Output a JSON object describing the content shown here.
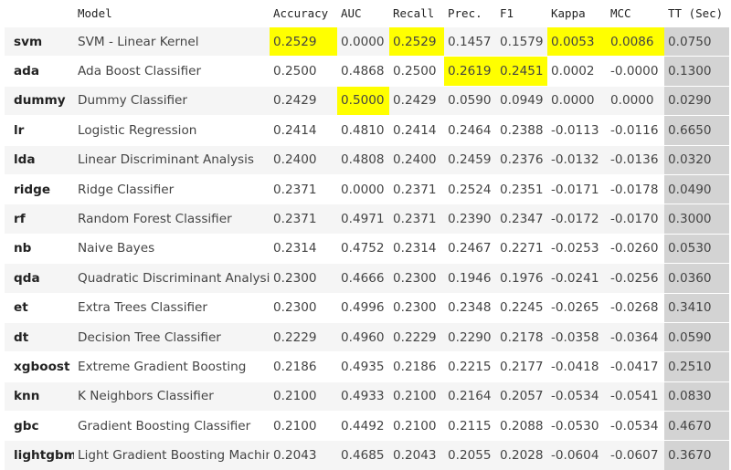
{
  "table": {
    "columns": [
      "",
      "Model",
      "Accuracy",
      "AUC",
      "Recall",
      "Prec.",
      "F1",
      "Kappa",
      "MCC",
      "TT (Sec)"
    ],
    "rows": [
      {
        "key": "svm",
        "model": "SVM - Linear Kernel",
        "accuracy": "0.2529",
        "auc": "0.0000",
        "recall": "0.2529",
        "prec": "0.1457",
        "f1": "0.1579",
        "kappa": "0.0053",
        "mcc": "0.0086",
        "tt": "0.0750",
        "highlight": [
          "accuracy",
          "recall",
          "kappa",
          "mcc"
        ]
      },
      {
        "key": "ada",
        "model": "Ada Boost Classifier",
        "accuracy": "0.2500",
        "auc": "0.4868",
        "recall": "0.2500",
        "prec": "0.2619",
        "f1": "0.2451",
        "kappa": "0.0002",
        "mcc": "-0.0000",
        "tt": "0.1300",
        "highlight": [
          "prec",
          "f1"
        ]
      },
      {
        "key": "dummy",
        "model": "Dummy Classifier",
        "accuracy": "0.2429",
        "auc": "0.5000",
        "recall": "0.2429",
        "prec": "0.0590",
        "f1": "0.0949",
        "kappa": "0.0000",
        "mcc": "0.0000",
        "tt": "0.0290",
        "highlight": [
          "auc"
        ]
      },
      {
        "key": "lr",
        "model": "Logistic Regression",
        "accuracy": "0.2414",
        "auc": "0.4810",
        "recall": "0.2414",
        "prec": "0.2464",
        "f1": "0.2388",
        "kappa": "-0.0113",
        "mcc": "-0.0116",
        "tt": "0.6650",
        "highlight": []
      },
      {
        "key": "lda",
        "model": "Linear Discriminant Analysis",
        "accuracy": "0.2400",
        "auc": "0.4808",
        "recall": "0.2400",
        "prec": "0.2459",
        "f1": "0.2376",
        "kappa": "-0.0132",
        "mcc": "-0.0136",
        "tt": "0.0320",
        "highlight": []
      },
      {
        "key": "ridge",
        "model": "Ridge Classifier",
        "accuracy": "0.2371",
        "auc": "0.0000",
        "recall": "0.2371",
        "prec": "0.2524",
        "f1": "0.2351",
        "kappa": "-0.0171",
        "mcc": "-0.0178",
        "tt": "0.0490",
        "highlight": []
      },
      {
        "key": "rf",
        "model": "Random Forest Classifier",
        "accuracy": "0.2371",
        "auc": "0.4971",
        "recall": "0.2371",
        "prec": "0.2390",
        "f1": "0.2347",
        "kappa": "-0.0172",
        "mcc": "-0.0170",
        "tt": "0.3000",
        "highlight": []
      },
      {
        "key": "nb",
        "model": "Naive Bayes",
        "accuracy": "0.2314",
        "auc": "0.4752",
        "recall": "0.2314",
        "prec": "0.2467",
        "f1": "0.2271",
        "kappa": "-0.0253",
        "mcc": "-0.0260",
        "tt": "0.0530",
        "highlight": []
      },
      {
        "key": "qda",
        "model": "Quadratic Discriminant Analysis",
        "accuracy": "0.2300",
        "auc": "0.4666",
        "recall": "0.2300",
        "prec": "0.1946",
        "f1": "0.1976",
        "kappa": "-0.0241",
        "mcc": "-0.0256",
        "tt": "0.0360",
        "highlight": []
      },
      {
        "key": "et",
        "model": "Extra Trees Classifier",
        "accuracy": "0.2300",
        "auc": "0.4996",
        "recall": "0.2300",
        "prec": "0.2348",
        "f1": "0.2245",
        "kappa": "-0.0265",
        "mcc": "-0.0268",
        "tt": "0.3410",
        "highlight": []
      },
      {
        "key": "dt",
        "model": "Decision Tree Classifier",
        "accuracy": "0.2229",
        "auc": "0.4960",
        "recall": "0.2229",
        "prec": "0.2290",
        "f1": "0.2178",
        "kappa": "-0.0358",
        "mcc": "-0.0364",
        "tt": "0.0590",
        "highlight": []
      },
      {
        "key": "xgboost",
        "model": "Extreme Gradient Boosting",
        "accuracy": "0.2186",
        "auc": "0.4935",
        "recall": "0.2186",
        "prec": "0.2215",
        "f1": "0.2177",
        "kappa": "-0.0418",
        "mcc": "-0.0417",
        "tt": "0.2510",
        "highlight": []
      },
      {
        "key": "knn",
        "model": "K Neighbors Classifier",
        "accuracy": "0.2100",
        "auc": "0.4933",
        "recall": "0.2100",
        "prec": "0.2164",
        "f1": "0.2057",
        "kappa": "-0.0534",
        "mcc": "-0.0541",
        "tt": "0.0830",
        "highlight": []
      },
      {
        "key": "gbc",
        "model": "Gradient Boosting Classifier",
        "accuracy": "0.2100",
        "auc": "0.4492",
        "recall": "0.2100",
        "prec": "0.2115",
        "f1": "0.2088",
        "kappa": "-0.0530",
        "mcc": "-0.0534",
        "tt": "0.4670",
        "highlight": []
      },
      {
        "key": "lightgbm",
        "model": "Light Gradient Boosting Machine",
        "accuracy": "0.2043",
        "auc": "0.4685",
        "recall": "0.2043",
        "prec": "0.2055",
        "f1": "0.2028",
        "kappa": "-0.0604",
        "mcc": "-0.0607",
        "tt": "0.3670",
        "highlight": []
      }
    ]
  },
  "colors": {
    "highlight": "#ffff00",
    "time_column": "#d3d3d3",
    "stripe": "#f5f5f5"
  }
}
